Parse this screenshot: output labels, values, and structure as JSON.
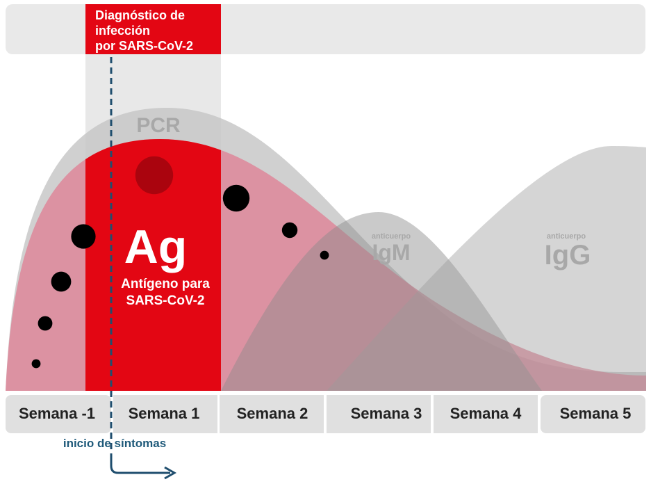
{
  "header": {
    "title_lines": [
      "Diagnóstico de",
      "infección",
      "por SARS-CoV-2"
    ]
  },
  "curves": {
    "pcr": "PCR",
    "igm": {
      "prefix": "anticuerpo",
      "label": "IgM"
    },
    "igg": {
      "prefix": "anticuerpo",
      "label": "IgG"
    }
  },
  "antigen": {
    "label": "Ag",
    "description_lines": [
      "Antígeno para",
      "SARS-CoV-2"
    ]
  },
  "weeks": [
    "Semana -1",
    "Semana 1",
    "Semana 2",
    "Semana 3",
    "Semana 4",
    "Semana 5"
  ],
  "symptom_onset": "inicio de síntomas"
}
